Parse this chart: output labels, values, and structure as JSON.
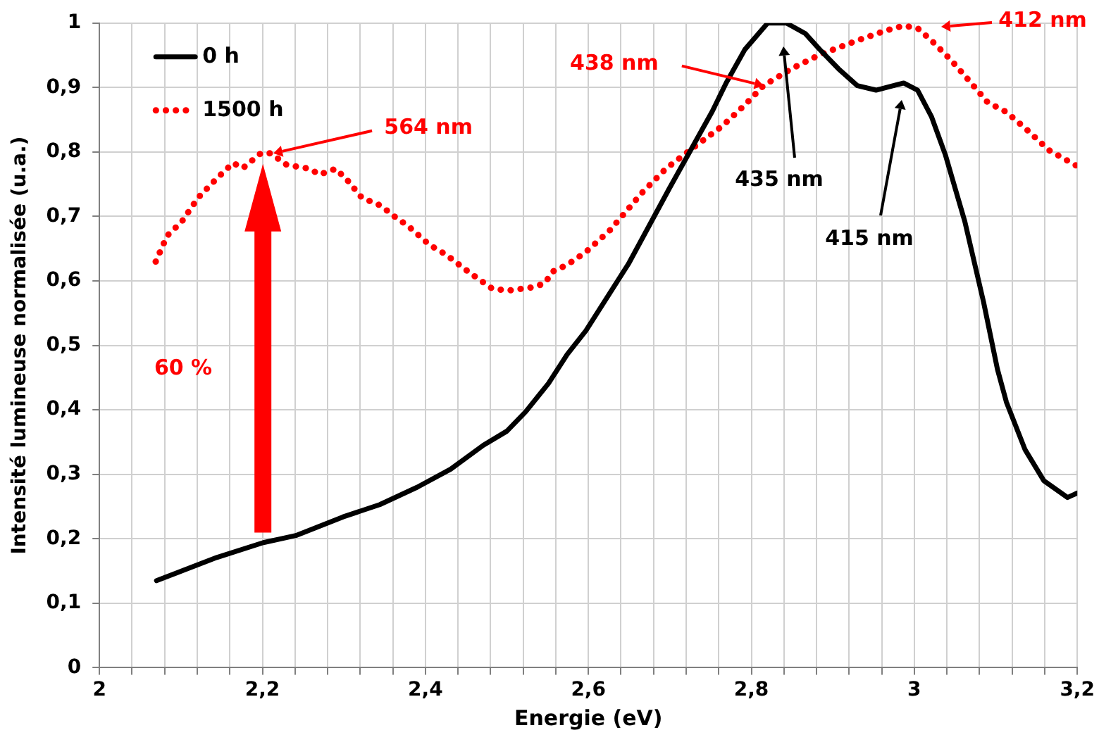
{
  "chart_data": {
    "type": "line",
    "xlabel": "Energie (eV)",
    "ylabel": "Intensité lumineuse normalisée (u.a.)",
    "xlim": [
      2,
      3.2
    ],
    "xticks": [
      2,
      {
        "value": 2.04,
        "label": null
      },
      {
        "value": 2.08,
        "label": null
      },
      {
        "value": 2.12,
        "label": null
      },
      {
        "value": 2.16,
        "label": null
      },
      {
        "value": 2.2,
        "label": "2,2"
      },
      {
        "value": 2.24,
        "label": null
      },
      {
        "value": 2.28,
        "label": null
      },
      {
        "value": 2.32,
        "label": null
      },
      {
        "value": 2.36,
        "label": null
      },
      {
        "value": 2.4,
        "label": "2,4"
      },
      {
        "value": 2.44,
        "label": null
      },
      {
        "value": 2.48,
        "label": null
      },
      {
        "value": 2.52,
        "label": null
      },
      {
        "value": 2.56,
        "label": null
      },
      {
        "value": 2.6,
        "label": "2,6"
      },
      {
        "value": 2.64,
        "label": null
      },
      {
        "value": 2.68,
        "label": null
      },
      {
        "value": 2.72,
        "label": null
      },
      {
        "value": 2.76,
        "label": null
      },
      {
        "value": 2.8,
        "label": "2,8"
      },
      {
        "value": 2.84,
        "label": null
      },
      {
        "value": 2.88,
        "label": null
      },
      {
        "value": 2.92,
        "label": null
      },
      {
        "value": 2.96,
        "label": null
      },
      3,
      {
        "value": 3.04,
        "label": null
      },
      {
        "value": 3.08,
        "label": null
      },
      {
        "value": 3.12,
        "label": null
      },
      {
        "value": 3.16,
        "label": null
      },
      {
        "value": 3.2,
        "label": "3,2"
      }
    ],
    "ylim": [
      0,
      1
    ],
    "yticks": [
      0,
      {
        "value": 0.1,
        "label": "0,1"
      },
      {
        "value": 0.2,
        "label": "0,2"
      },
      {
        "value": 0.3,
        "label": "0,3"
      },
      {
        "value": 0.4,
        "label": "0,4"
      },
      {
        "value": 0.5,
        "label": "0,5"
      },
      {
        "value": 0.6,
        "label": "0,6"
      },
      {
        "value": 0.7,
        "label": "0,7"
      },
      {
        "value": 0.8,
        "label": "0,8"
      },
      {
        "value": 0.9,
        "label": "0,9"
      },
      1
    ],
    "grid": true,
    "legend": "top left",
    "series": [
      {
        "name": "0 h",
        "color": "#000000",
        "line_style": "solid",
        "x": [
          2.07,
          2.144,
          2.201,
          2.241,
          2.299,
          2.344,
          2.39,
          2.431,
          2.471,
          2.5,
          2.523,
          2.551,
          2.574,
          2.597,
          2.649,
          2.7,
          2.752,
          2.769,
          2.792,
          2.82,
          2.843,
          2.866,
          2.884,
          2.907,
          2.93,
          2.953,
          2.987,
          3.004,
          3.021,
          3.038,
          3.062,
          3.085,
          3.102,
          3.113,
          3.136,
          3.159,
          3.188,
          3.2
        ],
        "values": [
          0.135,
          0.171,
          0.194,
          0.205,
          0.234,
          0.253,
          0.28,
          0.308,
          0.345,
          0.367,
          0.397,
          0.441,
          0.486,
          0.523,
          0.626,
          0.745,
          0.863,
          0.907,
          0.959,
          1.0,
          1.0,
          0.984,
          0.959,
          0.929,
          0.903,
          0.896,
          0.907,
          0.896,
          0.855,
          0.796,
          0.692,
          0.567,
          0.463,
          0.412,
          0.338,
          0.29,
          0.264,
          0.271
        ]
      },
      {
        "name": "1500 h",
        "color": "#ff0000",
        "line_style": "dotted",
        "x": [
          2.069,
          2.083,
          2.101,
          2.121,
          2.144,
          2.164,
          2.176,
          2.198,
          2.21,
          2.23,
          2.258,
          2.27,
          2.29,
          2.305,
          2.322,
          2.345,
          2.362,
          2.379,
          2.405,
          2.425,
          2.454,
          2.482,
          2.501,
          2.531,
          2.546,
          2.557,
          2.574,
          2.597,
          2.626,
          2.666,
          2.695,
          2.729,
          2.764,
          2.792,
          2.815,
          2.849,
          2.884,
          2.907,
          2.93,
          2.964,
          2.987,
          3.004,
          3.021,
          3.044,
          3.067,
          3.09,
          3.113,
          3.136,
          3.165,
          3.2
        ],
        "values": [
          0.63,
          0.67,
          0.692,
          0.729,
          0.759,
          0.783,
          0.775,
          0.798,
          0.798,
          0.78,
          0.774,
          0.765,
          0.774,
          0.755,
          0.729,
          0.717,
          0.7,
          0.685,
          0.656,
          0.641,
          0.613,
          0.588,
          0.585,
          0.59,
          0.596,
          0.615,
          0.625,
          0.645,
          0.678,
          0.737,
          0.774,
          0.807,
          0.84,
          0.873,
          0.903,
          0.929,
          0.951,
          0.962,
          0.973,
          0.988,
          0.996,
          0.992,
          0.973,
          0.944,
          0.911,
          0.877,
          0.862,
          0.837,
          0.803,
          0.778
        ]
      }
    ],
    "annotations": [
      {
        "text": "564 nm",
        "x": 2.21,
        "y": 0.798
      },
      {
        "text": "438 nm",
        "x": 2.815,
        "y": 0.903
      },
      "412 nm",
      "435 nm",
      "415 nm",
      "60 %"
    ]
  }
}
